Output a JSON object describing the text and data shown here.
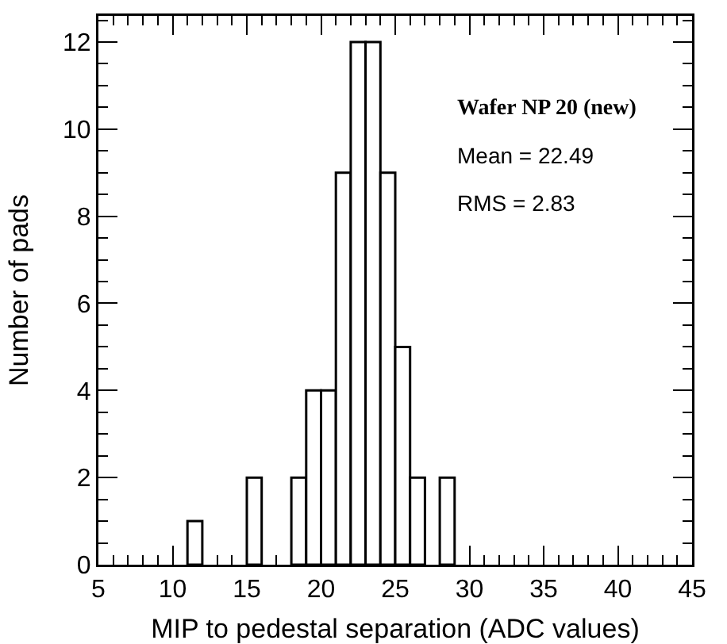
{
  "chart_data": {
    "type": "histogram",
    "xlabel": "MIP to pedestal separation (ADC values)",
    "ylabel": "Number of pads",
    "bins": [
      5,
      6,
      7,
      8,
      9,
      10,
      11,
      12,
      13,
      14,
      15,
      16,
      17,
      18,
      19,
      20,
      21,
      22,
      23,
      24,
      25,
      26,
      27,
      28,
      29,
      30,
      31,
      32,
      33,
      34,
      35,
      36,
      37,
      38,
      39,
      40,
      41,
      42,
      43,
      44,
      45
    ],
    "values": [
      0,
      0,
      0,
      0,
      0,
      0,
      1,
      0,
      0,
      0,
      2,
      0,
      0,
      2,
      4,
      4,
      9,
      12,
      12,
      9,
      5,
      2,
      0,
      2,
      0,
      0,
      0,
      0,
      0,
      0,
      0,
      0,
      0,
      0,
      0,
      0,
      0,
      0,
      0,
      0
    ],
    "color": "#ffffff",
    "xlim": [
      5,
      45
    ],
    "xticks": [
      5,
      10,
      15,
      20,
      25,
      30,
      35,
      40,
      45
    ],
    "ylim": [
      0,
      12.6
    ],
    "yticks": [
      0,
      2,
      4,
      6,
      8,
      10,
      12
    ],
    "annotations": [
      "Wafer NP 20 (new)",
      "Mean = 22.49",
      "RMS = 2.83"
    ]
  }
}
